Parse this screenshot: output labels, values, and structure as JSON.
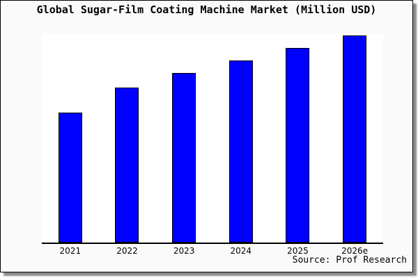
{
  "figure": {
    "source_text": "Source: Prof Research",
    "background": "#fafafa",
    "border_color": "#000000",
    "shadow_color": "#8a8a8a"
  },
  "chart_data": {
    "type": "bar",
    "title": "Global Sugar-Film Coating Machine Market (Million USD)",
    "categories": [
      "2021",
      "2022",
      "2023",
      "2024",
      "2025",
      "2026e"
    ],
    "values": [
      62,
      74,
      81,
      87,
      93,
      99
    ],
    "unit": "Million USD",
    "xlabel": "",
    "ylabel": "",
    "ylim": [
      0,
      100
    ],
    "y_axis_labels_visible": false,
    "grid": false,
    "legend": "none",
    "plot_background": "#ffffff",
    "axis_line_color": "#000000",
    "bar_fill": "#0000ff",
    "bar_edge": "#000000",
    "values_note": "No y-axis scale is printed on the chart; values are estimated as percent of plot height."
  }
}
